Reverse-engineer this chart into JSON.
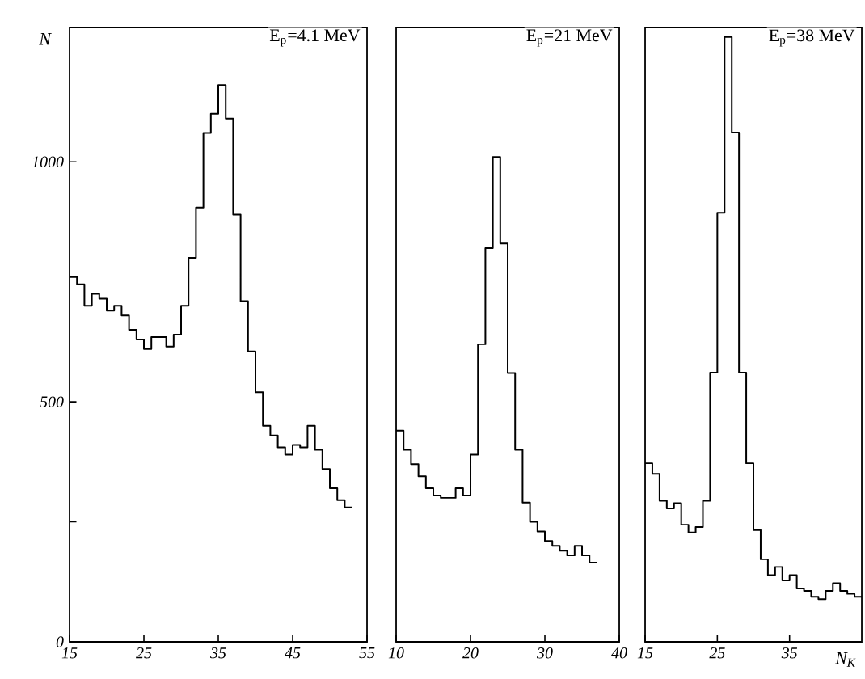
{
  "chart_data": [
    {
      "type": "histogram",
      "title": "E$_{p}$=4.1 MeV",
      "ylabel": "N",
      "bins": [
        15,
        16,
        17,
        18,
        19,
        20,
        21,
        22,
        23,
        24,
        25,
        26,
        27,
        28,
        29,
        30,
        31,
        32,
        33,
        34,
        35,
        36,
        37,
        38,
        39,
        40,
        41,
        42,
        43,
        44,
        45,
        46,
        47,
        48,
        49,
        50,
        51,
        52,
        53
      ],
      "values": [
        760,
        745,
        700,
        725,
        715,
        690,
        700,
        680,
        650,
        630,
        610,
        635,
        635,
        615,
        640,
        700,
        800,
        905,
        1060,
        1100,
        1160,
        1090,
        890,
        710,
        605,
        520,
        450,
        430,
        405,
        390,
        410,
        405,
        450,
        400,
        360,
        320,
        295,
        280
      ],
      "xlim": [
        15,
        55
      ],
      "xticks": [
        15,
        25,
        35,
        45,
        55
      ],
      "ylim": [
        0,
        1280
      ],
      "yticks": [
        0,
        {
          "value": 250,
          "label": null
        },
        500,
        1000
      ],
      "color": "#000000"
    },
    {
      "type": "histogram",
      "title": "E$_{p}$=21 MeV",
      "bins": [
        10,
        11,
        12,
        13,
        14,
        15,
        16,
        17,
        18,
        19,
        20,
        21,
        22,
        23,
        24,
        25,
        26,
        27,
        28,
        29,
        30,
        31,
        32,
        33,
        34,
        35,
        36,
        37
      ],
      "values": [
        440,
        400,
        370,
        345,
        320,
        305,
        300,
        300,
        320,
        305,
        390,
        620,
        820,
        1010,
        830,
        560,
        400,
        290,
        250,
        230,
        210,
        200,
        190,
        180,
        200,
        180,
        165
      ],
      "xlim": [
        10,
        40
      ],
      "xticks": [
        10,
        20,
        30,
        40
      ],
      "ylim": [
        0,
        1280
      ],
      "tick_labels": "x",
      "color": "#000000"
    },
    {
      "type": "histogram",
      "title": "E$_{p}$=38 MeV",
      "xlabel": "N$_{K}$",
      "bins": [
        15,
        16,
        17,
        18,
        19,
        20,
        21,
        22,
        23,
        24,
        25,
        26,
        27,
        28,
        29,
        30,
        31,
        32,
        33,
        34,
        35,
        36,
        37,
        38,
        39,
        40,
        41,
        42,
        43,
        44,
        45
      ],
      "values": [
        372,
        350,
        294,
        278,
        289,
        244,
        228,
        239,
        294,
        561,
        894,
        1260,
        1061,
        561,
        372,
        233,
        172,
        139,
        156,
        128,
        139,
        111,
        106,
        94,
        89,
        106,
        122,
        106,
        100,
        94
      ],
      "xlim": [
        15,
        45
      ],
      "xticks": [
        15,
        25,
        35
      ],
      "ylim": [
        0,
        1280
      ],
      "tick_labels": "x",
      "color": "#000000"
    }
  ]
}
